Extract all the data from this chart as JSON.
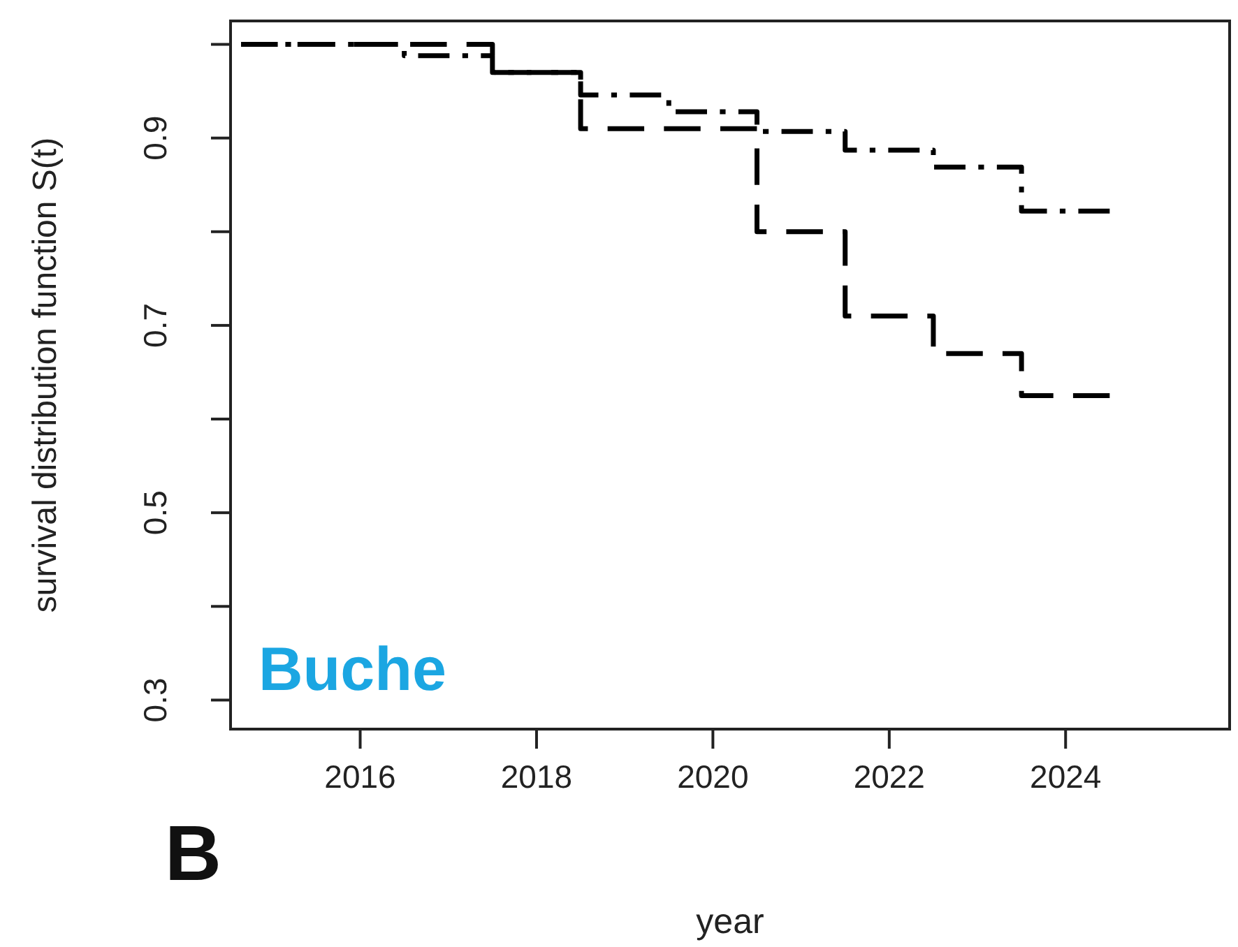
{
  "chart_data": {
    "type": "step",
    "xlabel": "year",
    "ylabel": "survival distribution function S(t)",
    "annotations": [
      "Buche",
      "B"
    ],
    "xlim": [
      2014.53,
      2025.86
    ],
    "xticks": [
      2016,
      2018,
      2020,
      2022,
      2024
    ],
    "ylim": [
      0.269,
      1.025
    ],
    "yticks": [
      0.3,
      {
        "value": 0.4,
        "label": null
      },
      0.5,
      {
        "value": 0.6,
        "label": null
      },
      0.7,
      {
        "value": 0.8,
        "label": null
      },
      0.9,
      {
        "value": 1.0,
        "label": null
      }
    ],
    "grid": false,
    "marker": "none",
    "series": [
      {
        "color": "#000000",
        "line_style": "dashed",
        "x": [
          2014.65,
          2017.5,
          2018.5,
          2020.5,
          2021.5,
          2022.5,
          2023.5,
          2024.5
        ],
        "values": [
          1.0,
          0.97,
          0.91,
          0.8,
          0.71,
          0.67,
          0.625,
          0.625
        ]
      },
      {
        "color": "#000000",
        "line_style": "dashdot",
        "x": [
          2014.65,
          2016.5,
          2017.5,
          2018.5,
          2019.5,
          2020.5,
          2021.5,
          2022.5,
          2023.5,
          2024.5
        ],
        "values": [
          1.0,
          0.988,
          0.97,
          0.946,
          0.928,
          0.907,
          0.887,
          0.869,
          0.822,
          0.822
        ]
      }
    ]
  }
}
